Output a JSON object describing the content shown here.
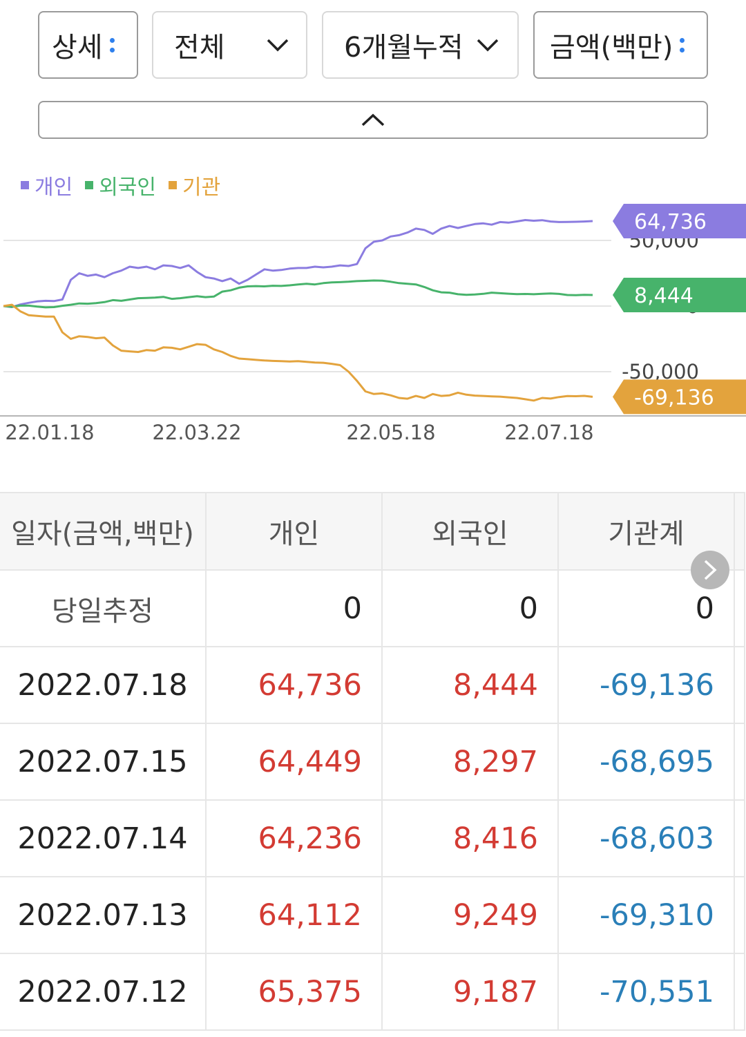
{
  "controls": {
    "detail": {
      "label": "상세",
      "icon": "more-vertical-icon"
    },
    "scope": {
      "label": "전체",
      "icon": "chevron-down-icon"
    },
    "period": {
      "label": "6개월누적",
      "icon": "chevron-down-icon"
    },
    "unit": {
      "label": "금액(백만)",
      "icon": "more-vertical-icon"
    },
    "collapse_icon": "chevron-up-icon"
  },
  "colors": {
    "individual": "#8b7ce0",
    "foreign": "#47b36b",
    "institution": "#e3a33d",
    "positive": "#d33b33",
    "negative": "#2a7fb8",
    "accent": "#2f80ed"
  },
  "legend": [
    "개인",
    "외국인",
    "기관"
  ],
  "chart_data": {
    "type": "line",
    "x_ticks": [
      "22.01.18",
      "22.03.22",
      "22.05.18",
      "22.07.18"
    ],
    "y_ticks": [
      50000,
      0,
      -50000
    ],
    "y_tick_labels": [
      "50,000",
      "0",
      "-50,000"
    ],
    "ylim": [
      -85000,
      82000
    ],
    "grid": true,
    "legend_position": "top-left",
    "last_values": [
      "64,736",
      "8,444",
      "-69,136"
    ],
    "series": [
      {
        "name": "개인",
        "values": [
          0,
          -800,
          1200,
          2500,
          3500,
          4000,
          3800,
          5000,
          20000,
          25000,
          23000,
          24000,
          22000,
          25000,
          27000,
          30000,
          29000,
          30000,
          28000,
          31000,
          30500,
          29000,
          31000,
          26000,
          22000,
          21000,
          19000,
          21000,
          17000,
          20000,
          24000,
          28000,
          27000,
          27500,
          28500,
          29000,
          29000,
          30000,
          29500,
          30000,
          31000,
          30500,
          32000,
          44000,
          49000,
          50000,
          53000,
          54000,
          56000,
          59000,
          58000,
          55000,
          59000,
          61000,
          59500,
          61000,
          62500,
          63000,
          62000,
          64000,
          63500,
          64500,
          65500,
          65000,
          65400,
          64400,
          64000,
          64100,
          64200,
          64400,
          64736
        ]
      },
      {
        "name": "외국인",
        "values": [
          0,
          -600,
          300,
          300,
          -400,
          -1000,
          -800,
          200,
          1000,
          2000,
          1800,
          2200,
          3000,
          4500,
          4000,
          5000,
          6000,
          6200,
          6500,
          7000,
          5500,
          6000,
          6800,
          7500,
          6800,
          7200,
          11000,
          12000,
          14000,
          15000,
          15200,
          15000,
          15500,
          15300,
          15800,
          16500,
          17000,
          16500,
          17500,
          18000,
          18200,
          18500,
          19000,
          19200,
          19500,
          19300,
          18500,
          17500,
          17000,
          16500,
          14500,
          12000,
          10500,
          10200,
          9000,
          8600,
          8800,
          9300,
          10200,
          9800,
          9400,
          9100,
          9200,
          9000,
          9300,
          9600,
          9249,
          8416,
          8297,
          8600,
          8444
        ]
      },
      {
        "name": "기관",
        "values": [
          0,
          1000,
          -4000,
          -7000,
          -7500,
          -8000,
          -8000,
          -20000,
          -25000,
          -23000,
          -23500,
          -24500,
          -24000,
          -30000,
          -34000,
          -34500,
          -35000,
          -33500,
          -34000,
          -31500,
          -31800,
          -33000,
          -31000,
          -29000,
          -29500,
          -33000,
          -35000,
          -38000,
          -40000,
          -40500,
          -41000,
          -41500,
          -41800,
          -42000,
          -42200,
          -42000,
          -42500,
          -43000,
          -43200,
          -44000,
          -45000,
          -50000,
          -57000,
          -65000,
          -67000,
          -66500,
          -68000,
          -70000,
          -70600,
          -68500,
          -70000,
          -67000,
          -68500,
          -68000,
          -66000,
          -67500,
          -68200,
          -68500,
          -68800,
          -69000,
          -69500,
          -70000,
          -71000,
          -72000,
          -70000,
          -70500,
          -69310,
          -68603,
          -68695,
          -68400,
          -69136
        ]
      }
    ]
  },
  "table": {
    "headers": [
      "일자(금액,백만)",
      "개인",
      "외국인",
      "기관계"
    ],
    "estimate_row": {
      "label": "당일추정",
      "individual": "0",
      "foreign": "0",
      "institution": "0"
    },
    "rows": [
      {
        "date": "2022.07.18",
        "individual": "64,736",
        "foreign": "8,444",
        "institution": "-69,136"
      },
      {
        "date": "2022.07.15",
        "individual": "64,449",
        "foreign": "8,297",
        "institution": "-68,695"
      },
      {
        "date": "2022.07.14",
        "individual": "64,236",
        "foreign": "8,416",
        "institution": "-68,603"
      },
      {
        "date": "2022.07.13",
        "individual": "64,112",
        "foreign": "9,249",
        "institution": "-69,310"
      },
      {
        "date": "2022.07.12",
        "individual": "65,375",
        "foreign": "9,187",
        "institution": "-70,551"
      }
    ],
    "scroll_icon": "chevron-right-icon"
  }
}
